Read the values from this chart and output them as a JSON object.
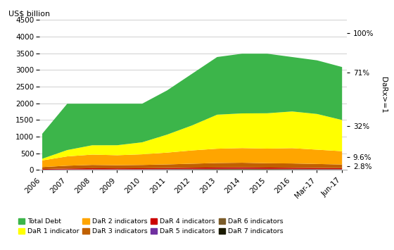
{
  "x_labels": [
    "2006",
    "2007",
    "2008",
    "2009",
    "2010",
    "2011",
    "2012",
    "2013",
    "2014",
    "2015",
    "2016",
    "Mar-17",
    "Jun-17"
  ],
  "x_positions": [
    0,
    1,
    2,
    3,
    4,
    5,
    6,
    7,
    8,
    9,
    10,
    11,
    12
  ],
  "series": {
    "DaR 7 indicators": [
      5,
      7,
      8,
      8,
      9,
      10,
      11,
      12,
      12,
      11,
      10,
      9,
      9
    ],
    "DaR 6 indicators": [
      10,
      15,
      18,
      18,
      20,
      22,
      26,
      28,
      30,
      29,
      27,
      25,
      23
    ],
    "DaR 5 indicators": [
      3,
      4,
      5,
      5,
      5,
      6,
      7,
      7,
      7,
      6,
      6,
      5,
      5
    ],
    "DaR 4 indicators": [
      20,
      28,
      32,
      28,
      28,
      30,
      35,
      38,
      40,
      37,
      34,
      32,
      28
    ],
    "DaR 3 indicators": [
      60,
      85,
      100,
      95,
      100,
      110,
      120,
      135,
      140,
      130,
      130,
      120,
      110
    ],
    "DaR 2 indicators": [
      200,
      280,
      310,
      300,
      320,
      355,
      400,
      430,
      440,
      440,
      460,
      430,
      400
    ],
    "DaR 1 indicator": [
      50,
      190,
      280,
      300,
      360,
      540,
      750,
      1020,
      1040,
      1060,
      1100,
      1070,
      935
    ],
    "Total Debt": [
      750,
      1390,
      1247,
      1246,
      1158,
      1327,
      1551,
      1730,
      1791,
      1787,
      1633,
      1609,
      1590
    ]
  },
  "colors": {
    "Total Debt": "#3cb54a",
    "DaR 1 indicator": "#ffff00",
    "DaR 2 indicators": "#ffa500",
    "DaR 3 indicators": "#c06000",
    "DaR 4 indicators": "#cc0000",
    "DaR 5 indicators": "#7030a0",
    "DaR 6 indicators": "#7b5c2a",
    "DaR 7 indicators": "#1a1a00"
  },
  "stack_order": [
    "DaR 7 indicators",
    "DaR 6 indicators",
    "DaR 5 indicators",
    "DaR 4 indicators",
    "DaR 3 indicators",
    "DaR 2 indicators",
    "DaR 1 indicator",
    "Total Debt"
  ],
  "ylabel_left": "US$ billion",
  "ylim": [
    0,
    4500
  ],
  "yticks": [
    0,
    500,
    1000,
    1500,
    2000,
    2500,
    3000,
    3500,
    4000,
    4500
  ],
  "right_ticks": [
    [
      "2.8%",
      115
    ],
    [
      "9.6%",
      395
    ],
    [
      "32%",
      1315
    ],
    [
      "71%",
      2915
    ],
    [
      "100%",
      4100
    ]
  ],
  "right_axis_label": "DaRx>=1",
  "background_color": "#ffffff",
  "grid_color": "#c8c8c8",
  "legend_order": [
    "Total Debt",
    "DaR 1 indicator",
    "DaR 2 indicators",
    "DaR 3 indicators",
    "DaR 4 indicators",
    "DaR 5 indicators",
    "DaR 6 indicators",
    "DaR 7 indicators"
  ]
}
